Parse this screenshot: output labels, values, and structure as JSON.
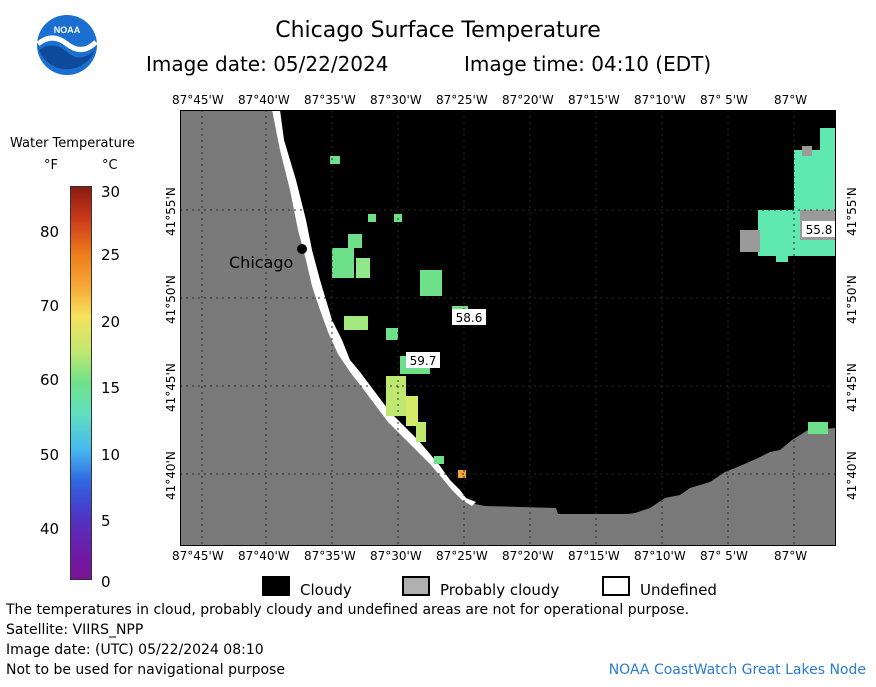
{
  "header": {
    "title": "Chicago Surface Temperature",
    "image_date": "Image date: 05/22/2024",
    "image_time": "Image time: 04:10 (EDT)"
  },
  "logo": {
    "text": "NOAA"
  },
  "legend": {
    "title": "Water Temperature",
    "unit_f": "°F",
    "unit_c": "°C",
    "f_ticks": [
      "80",
      "70",
      "60",
      "50",
      "40"
    ],
    "c_ticks": [
      "30",
      "25",
      "20",
      "15",
      "10",
      "5",
      "0"
    ],
    "colors": [
      "#8b1a10",
      "#c9381a",
      "#ef7b1c",
      "#f5a534",
      "#f6e15d",
      "#bfe870",
      "#6fe08a",
      "#5fe0c0",
      "#46b8f0",
      "#2f67e0",
      "#4a3ac8",
      "#6a1eaa",
      "#7a1495"
    ]
  },
  "map": {
    "lon_labels": [
      "87°45'W",
      "87°40'W",
      "87°35'W",
      "87°30'W",
      "87°25'W",
      "87°20'W",
      "87°15'W",
      "87°10'W",
      "87° 5'W",
      "87°W"
    ],
    "lat_labels": [
      "41°55'N",
      "41°50'N",
      "41°45'N",
      "41°40'N"
    ],
    "city": "Chicago",
    "readings": [
      "58.6",
      "59.7",
      "55.8"
    ]
  },
  "key": {
    "cloudy": "Cloudy",
    "probably_cloudy": "Probably cloudy",
    "undefined": "Undefined"
  },
  "footer": {
    "disclaimer": "The temperatures in cloud, probably cloudy and undefined areas are not for operational purpose.",
    "satellite": "Satellite: VIIRS_NPP",
    "utc_date": "Image date: (UTC) 05/22/2024  08:10",
    "nav_warning": "Not to be used for navigational purpose",
    "credit": "NOAA CoastWatch Great Lakes Node"
  }
}
